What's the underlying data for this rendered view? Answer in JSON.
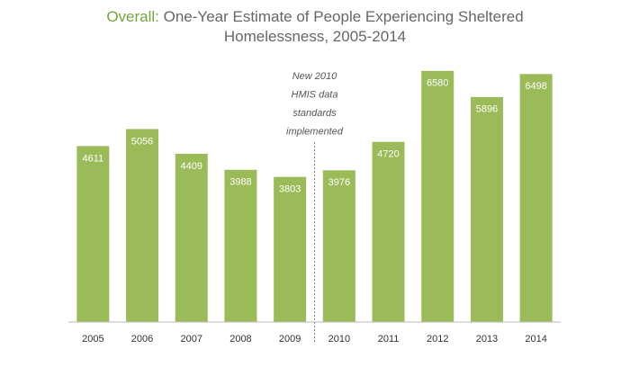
{
  "chart_data": {
    "type": "bar",
    "title_highlight": "Overall:",
    "title": "One-Year Estimate of People Experiencing Sheltered Homelessness, 2005-2014",
    "categories": [
      "2005",
      "2006",
      "2007",
      "2008",
      "2009",
      "2010",
      "2011",
      "2012",
      "2013",
      "2014"
    ],
    "values": [
      4611,
      5056,
      4409,
      3988,
      3803,
      3976,
      4720,
      6580,
      5896,
      6498
    ],
    "color": "#9bbb59",
    "ylim": [
      0,
      7000
    ],
    "annotation": [
      "New 2010",
      "HMIS data",
      "standards",
      "implemented"
    ]
  }
}
